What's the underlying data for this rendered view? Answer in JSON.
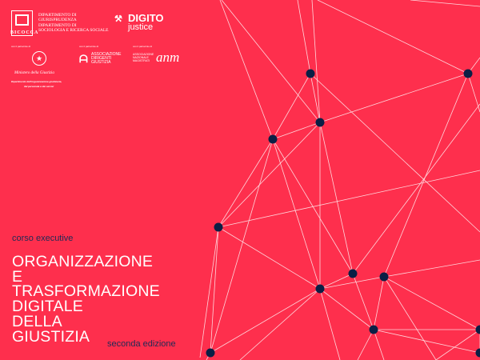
{
  "header": {
    "university": {
      "name": "Bicocca",
      "departments": [
        "Dipartimento di",
        "Giurisprudenza",
        "Dipartimento di",
        "Sociologia e Ricerca Sociale"
      ]
    },
    "partner": {
      "name_line1": "DIGITO",
      "name_line2": "justice"
    },
    "patronage_label": "con il patrocinio di",
    "patrons": [
      {
        "name": "Ministero della Giustizia",
        "subtitle_line1": "Dipartimento dell'organizzazione giudiziaria,",
        "subtitle_line2": "del personale e dei servizi"
      },
      {
        "name_lines": [
          "Associazione",
          "Dirigenti",
          "Giustizia"
        ]
      },
      {
        "name_lines": [
          "Associazione",
          "Nazionale",
          "Magistrati"
        ],
        "logo": "anm"
      }
    ]
  },
  "course": {
    "type": "corso executive",
    "title_lines": [
      "ORGANIZZAZIONE",
      "E",
      "TRASFORMAZIONE",
      "DIGITALE",
      "DELLA",
      "GIUSTIZIA"
    ],
    "edition": "seconda edizione"
  },
  "colors": {
    "background": "#fe2f4d",
    "node": "#0b1f45",
    "line": "#ffd6dc",
    "accent_text": "#1f2a55"
  }
}
